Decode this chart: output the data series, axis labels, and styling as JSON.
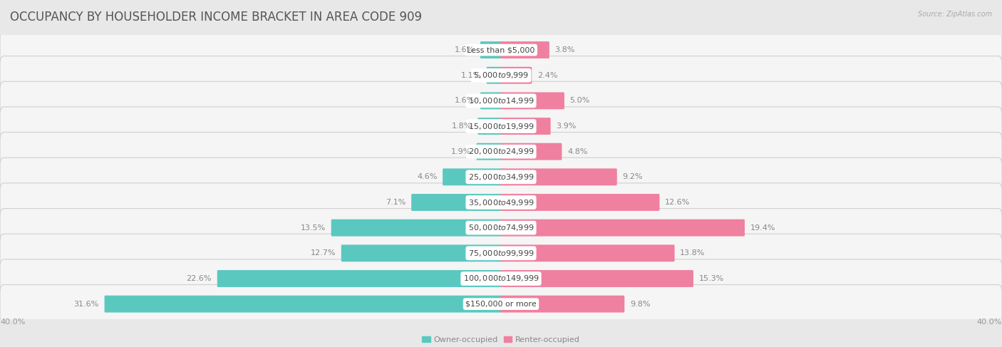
{
  "title": "OCCUPANCY BY HOUSEHOLDER INCOME BRACKET IN AREA CODE 909",
  "source": "Source: ZipAtlas.com",
  "categories": [
    "Less than $5,000",
    "$5,000 to $9,999",
    "$10,000 to $14,999",
    "$15,000 to $19,999",
    "$20,000 to $24,999",
    "$25,000 to $34,999",
    "$35,000 to $49,999",
    "$50,000 to $74,999",
    "$75,000 to $99,999",
    "$100,000 to $149,999",
    "$150,000 or more"
  ],
  "owner_values": [
    1.6,
    1.1,
    1.6,
    1.8,
    1.9,
    4.6,
    7.1,
    13.5,
    12.7,
    22.6,
    31.6
  ],
  "renter_values": [
    3.8,
    2.4,
    5.0,
    3.9,
    4.8,
    9.2,
    12.6,
    19.4,
    13.8,
    15.3,
    9.8
  ],
  "owner_color": "#5BC8C0",
  "renter_color": "#F080A0",
  "axis_max": 40.0,
  "background_color": "#e8e8e8",
  "bar_bg_color": "#f5f5f5",
  "bar_border_color": "#d0d0d0",
  "owner_label": "Owner-occupied",
  "renter_label": "Renter-occupied",
  "title_fontsize": 12,
  "label_fontsize": 8,
  "category_fontsize": 8,
  "value_fontsize": 8
}
